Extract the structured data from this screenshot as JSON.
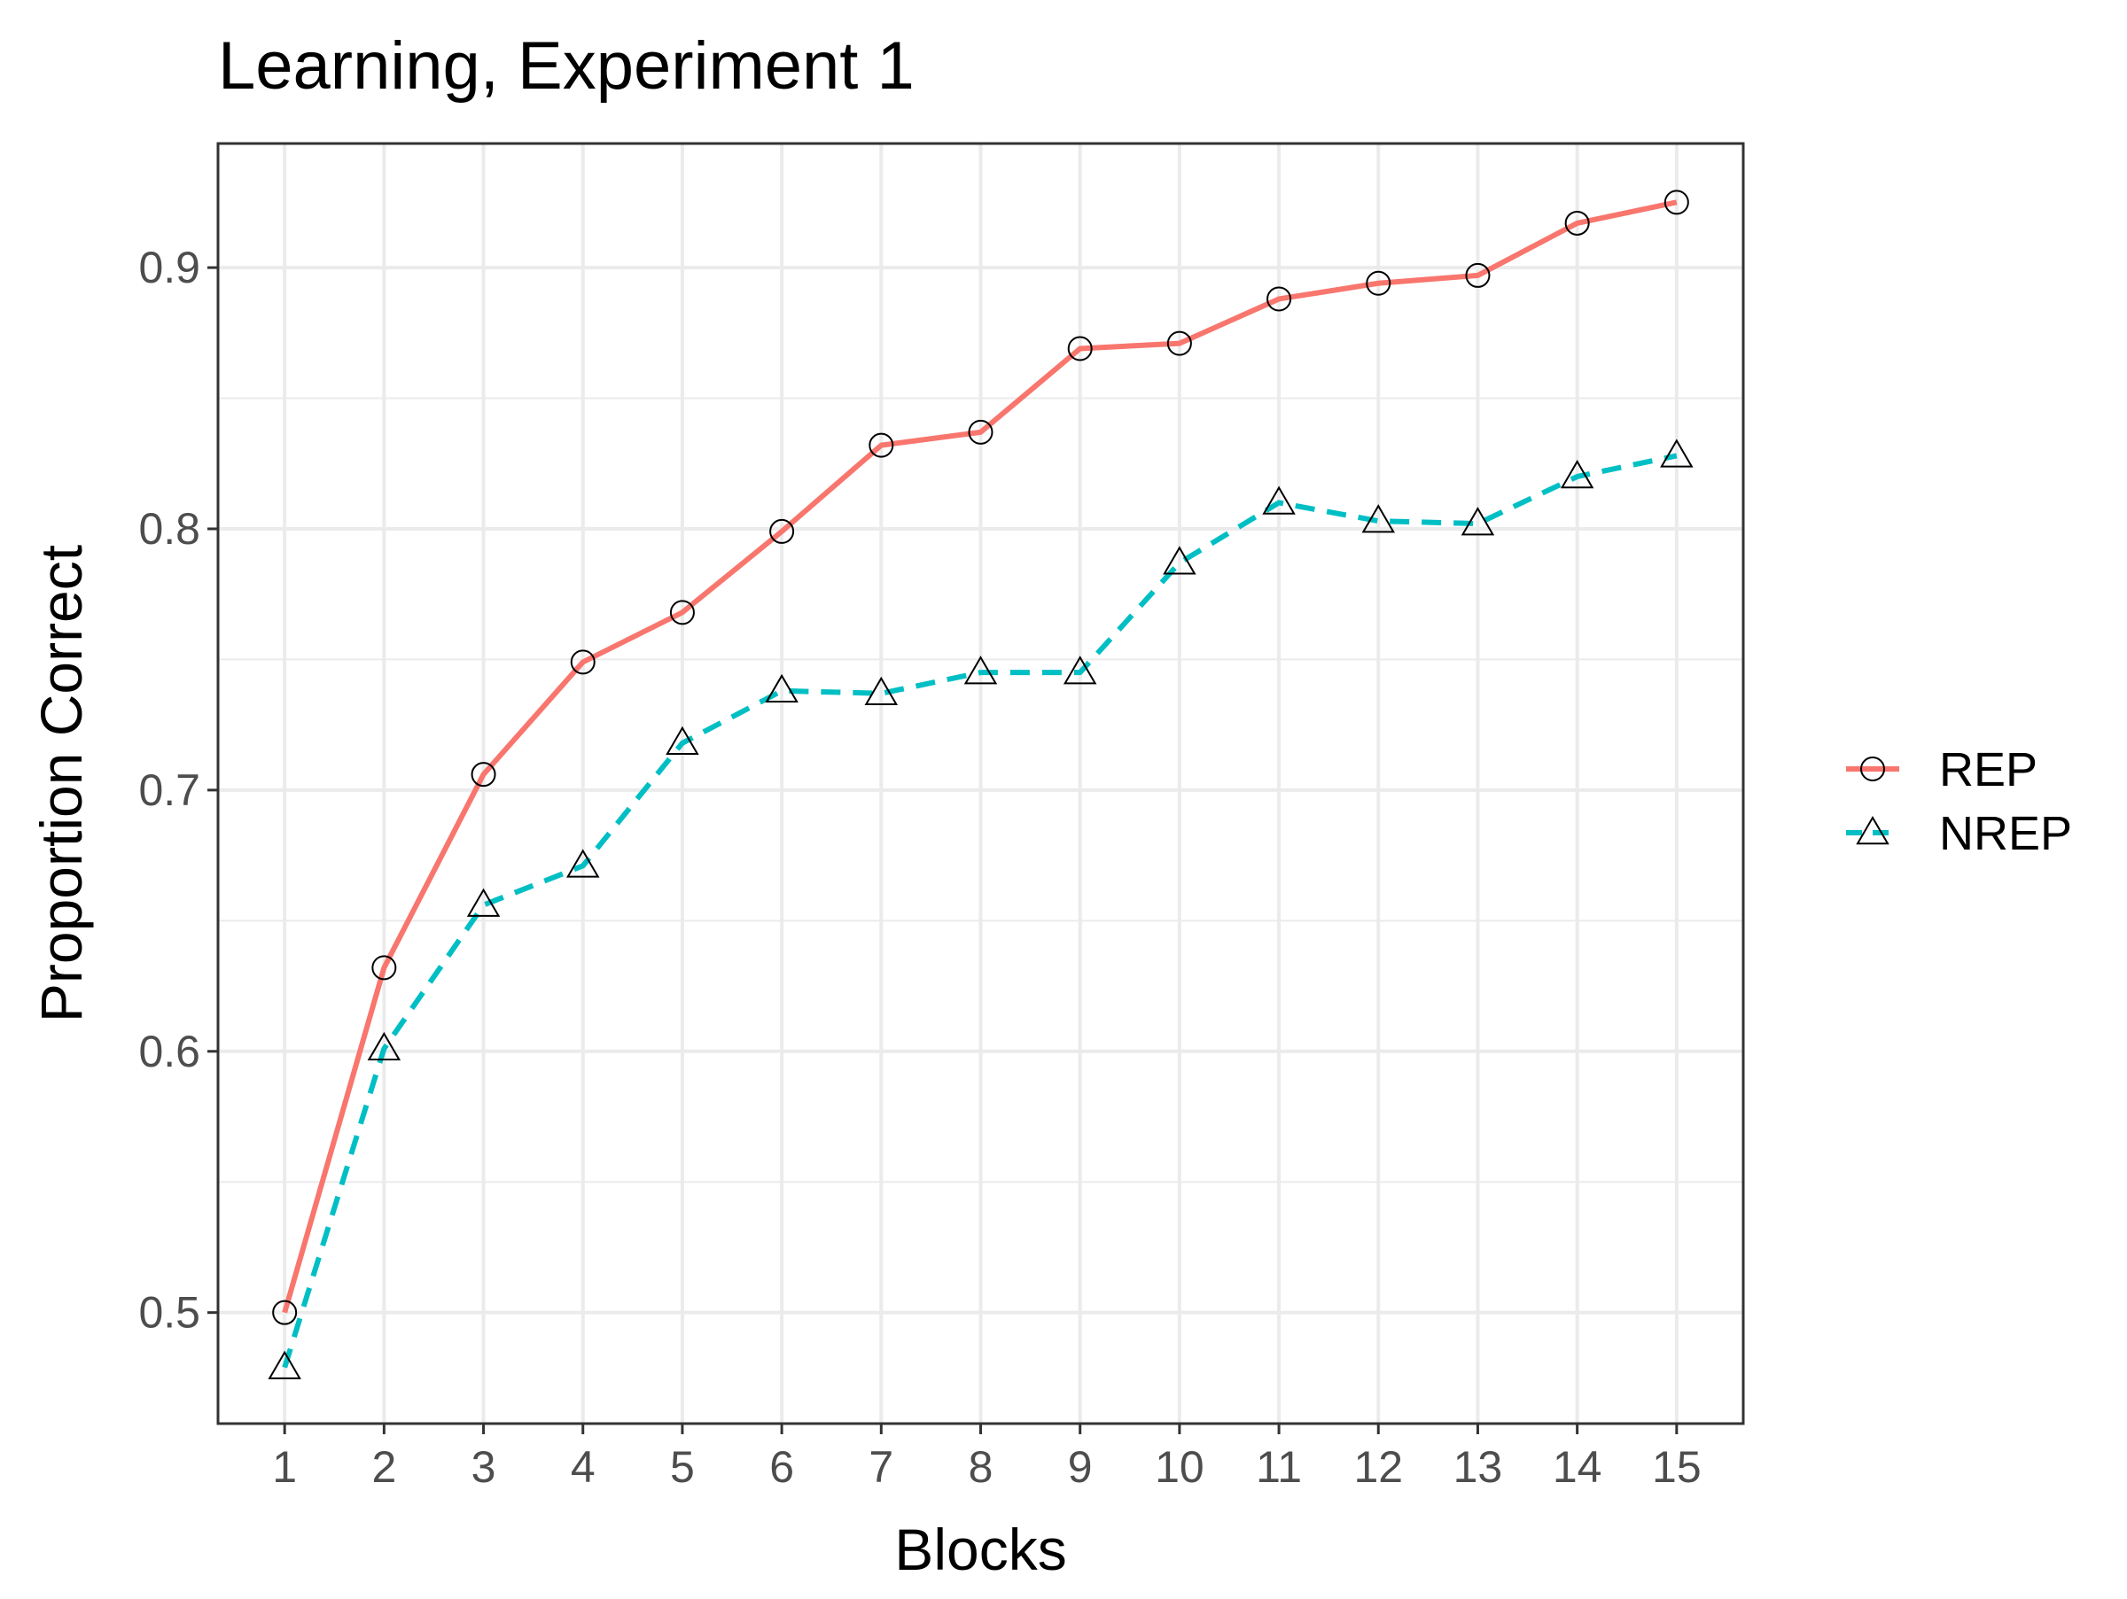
{
  "chart_data": {
    "type": "line",
    "title": "Learning, Experiment 1",
    "xlabel": "Blocks",
    "ylabel": "Proportion Correct",
    "x": [
      1,
      2,
      3,
      4,
      5,
      6,
      7,
      8,
      9,
      10,
      11,
      12,
      13,
      14,
      15
    ],
    "x_ticks": [
      "1",
      "2",
      "3",
      "4",
      "5",
      "6",
      "7",
      "8",
      "9",
      "10",
      "11",
      "12",
      "13",
      "14",
      "15"
    ],
    "xlim": [
      0.33,
      15.67
    ],
    "y_ticks": [
      "0.5",
      "0.6",
      "0.7",
      "0.8",
      "0.9"
    ],
    "y_tick_values": [
      0.5,
      0.6,
      0.7,
      0.8,
      0.9
    ],
    "ylim": [
      0.4575,
      0.9475
    ],
    "grid": true,
    "legend_position": "right",
    "series": [
      {
        "name": "REP",
        "color": "#F8766D",
        "line_style": "solid",
        "marker": "circle",
        "values": [
          0.5,
          0.632,
          0.706,
          0.749,
          0.768,
          0.799,
          0.832,
          0.837,
          0.869,
          0.871,
          0.888,
          0.894,
          0.897,
          0.917,
          0.925
        ]
      },
      {
        "name": "NREP",
        "color": "#00BFC4",
        "line_style": "dashed",
        "marker": "triangle",
        "values": [
          0.479,
          0.601,
          0.656,
          0.671,
          0.718,
          0.738,
          0.737,
          0.745,
          0.745,
          0.787,
          0.81,
          0.803,
          0.802,
          0.82,
          0.828
        ]
      }
    ]
  }
}
